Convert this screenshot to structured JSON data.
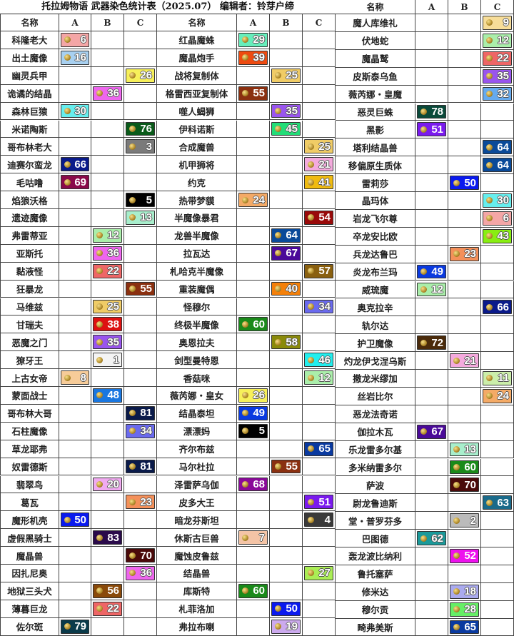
{
  "title": "托拉姆物语  武器染色统计表（2025.07）  编辑者：铃芽户缔",
  "headers": {
    "name": "名称",
    "a": "A",
    "b": "B",
    "c": "C"
  },
  "icon": "dye-orb-icon",
  "groups": [
    [
      [
        "科隆老大",
        "A",
        6,
        "#f4a6a6"
      ],
      [
        "出土魔像",
        "A",
        16,
        "#a8d0f0"
      ],
      [
        "幽灵兵甲",
        "C",
        26,
        "#f7f05a"
      ],
      [
        "诡谲的结晶",
        "B",
        36,
        "#ee66ee"
      ],
      [
        "森林巨猿",
        "A",
        30,
        "#66eeee"
      ],
      [
        "米诺陶斯",
        "C",
        76,
        "#0a5a1a"
      ],
      [
        "哥布林老大",
        "C",
        3,
        "#7a7a7a"
      ],
      [
        "迪赛尔蛮龙",
        "A",
        66,
        "#0a1a8a"
      ],
      [
        "毛咕噜",
        "A",
        69,
        "#8a0a4a"
      ],
      [
        "焰狼沃格",
        "C",
        5,
        "#000000"
      ],
      [
        "遗迹魔像",
        "C",
        13,
        "#a8eecc"
      ],
      [
        "弗雷蒂亚",
        "B",
        12,
        "#aaeeaa"
      ],
      [
        "亚斯托",
        "B",
        36,
        "#ee66ee"
      ],
      [
        "黏液怪",
        "B",
        22,
        "#ee6666"
      ],
      [
        "狂暴龙",
        "C",
        55,
        "#8a3010"
      ],
      [
        "马维兹",
        "B",
        25,
        "#f0cc66"
      ],
      [
        "甘瑞夫",
        "B",
        38,
        "#dd1111"
      ],
      [
        "恶魔之门",
        "B",
        35,
        "#9955ee"
      ],
      [
        "獠牙王",
        "B",
        1,
        "#f4f4f4"
      ],
      [
        "上古女帝",
        "A",
        8,
        "#f7cc99"
      ],
      [
        "蒙面战士",
        "B",
        48,
        "#1a77e0"
      ],
      [
        "哥布林大哥",
        "C",
        81,
        "#0a1a4a"
      ],
      [
        "石柱魔像",
        "C",
        34,
        "#6a6aee"
      ],
      [
        "草龙耶弗",
        "",
        null,
        ""
      ],
      [
        "奴雷德斯",
        "C",
        81,
        "#0a1a4a"
      ],
      [
        "翡翠鸟",
        "B",
        20,
        "#f0aaf0"
      ],
      [
        "葛瓦",
        "C",
        23,
        "#f4905a"
      ],
      [
        "魔形机壳",
        "A",
        50,
        "#0a1aee"
      ],
      [
        "虚假黑骑士",
        "B",
        83,
        "#2a0a4a"
      ],
      [
        "魔晶兽",
        "C",
        70,
        "#4a0a0a"
      ],
      [
        "因扎尼奥",
        "C",
        36,
        "#ee66ee"
      ],
      [
        "地狱三头犬",
        "B",
        56,
        "#8a4a0a"
      ],
      [
        "薄暮巨龙",
        "B",
        22,
        "#ee6666"
      ],
      [
        "佐尔斑",
        "A",
        79,
        "#0a3a4a"
      ]
    ],
    [
      [
        "红晶魔蛛",
        "A",
        29,
        "#66eebb"
      ],
      [
        "魔晶炮手",
        "A",
        39,
        "#ee4a10"
      ],
      [
        "战将复制体",
        "B",
        25,
        "#f0cc66"
      ],
      [
        "格雷西亚复制体",
        "A",
        55,
        "#8a3010"
      ],
      [
        "噬人蝎狮",
        "B",
        35,
        "#9955ee"
      ],
      [
        "伊科诺斯",
        "B",
        45,
        "#22dd77"
      ],
      [
        "合成魔兽",
        "C",
        25,
        "#f0cc66"
      ],
      [
        "机甲狮将",
        "C",
        21,
        "#f4aadd"
      ],
      [
        "约克",
        "C",
        41,
        "#f0bb10"
      ],
      [
        "热带梦貘",
        "A",
        24,
        "#f4aa66"
      ],
      [
        "半魔像暴君",
        "C",
        54,
        "#990a0a"
      ],
      [
        "龙兽半魔像",
        "B",
        64,
        "#0a4a99"
      ],
      [
        "拉瓦达",
        "B",
        67,
        "#4a0a99"
      ],
      [
        "札哈克半魔像",
        "C",
        57,
        "#8a6010"
      ],
      [
        "重装魔偶",
        "B",
        40,
        "#f4800a"
      ],
      [
        "怪穆尔",
        "C",
        34,
        "#6a6aee"
      ],
      [
        "终极半魔像",
        "A",
        60,
        "#1a8a1a"
      ],
      [
        "奥恩拉夫",
        "B",
        58,
        "#8a8a0a"
      ],
      [
        "剑型曼特恩",
        "C",
        46,
        "#22eeee"
      ],
      [
        "香菇咪",
        "C",
        12,
        "#aaeeaa"
      ],
      [
        "薇芮娜・皇女",
        "A",
        26,
        "#f7f05a"
      ],
      [
        "结晶泰坦",
        "A",
        49,
        "#0a3ae0"
      ],
      [
        "漂漂妈",
        "A",
        5,
        "#000000"
      ],
      [
        "齐尔布兹",
        "C",
        65,
        "#0a3aa0"
      ],
      [
        "马尔杜拉",
        "B",
        55,
        "#8a3010"
      ],
      [
        "泽雷萨乌伽",
        "A",
        68,
        "#8a0a99"
      ],
      [
        "皮多大王",
        "C",
        51,
        "#7a1aee"
      ],
      [
        "暗龙芬斯坦",
        "C",
        4,
        "#3a3a3a"
      ],
      [
        "休斯古巨兽",
        "A",
        7,
        "#f4c4a6"
      ],
      [
        "魔蚀皮鲁兹",
        "",
        null,
        ""
      ],
      [
        "结晶兽",
        "C",
        27,
        "#aaee55"
      ],
      [
        "库斯特",
        "A",
        60,
        "#1a8a1a"
      ],
      [
        "札菲洛加",
        "B",
        50,
        "#0a1aee"
      ],
      [
        "弗拉布喇",
        "B",
        19,
        "#ccaaee"
      ]
    ],
    [
      [
        "魔人库维礼",
        "C",
        9,
        "#f7dd99"
      ],
      [
        "伏地蛇",
        "C",
        12,
        "#aaeeaa"
      ],
      [
        "魔晶鹫",
        "C",
        22,
        "#ee6666"
      ],
      [
        "皮斯泰乌鱼",
        "C",
        35,
        "#9955ee"
      ],
      [
        "薇芮娜・皇魔",
        "C",
        32,
        "#66aaee"
      ],
      [
        "恶灵巨蛛",
        "A",
        78,
        "#0a4a3a"
      ],
      [
        "黑影",
        "A",
        51,
        "#7a1aee"
      ],
      [
        "塔利结晶兽",
        "C",
        64,
        "#0a4a99"
      ],
      [
        "移偏原生质体",
        "C",
        64,
        "#0a4a99"
      ],
      [
        "雷莉莎",
        "B",
        50,
        "#0a1aee"
      ],
      [
        "晶玛体",
        "C",
        30,
        "#66eeee"
      ],
      [
        "岩龙飞尔尊",
        "C",
        6,
        "#f4a6a6"
      ],
      [
        "卒龙安比欧",
        "C",
        43,
        "#88ee11"
      ],
      [
        "兵龙达鲁巴",
        "B",
        23,
        "#f4905a"
      ],
      [
        "炎龙布兰玛",
        "A",
        49,
        "#0a3ae0"
      ],
      [
        "威琉魔",
        "A",
        12,
        "#aaeeaa"
      ],
      [
        "奥克拉辛",
        "C",
        66,
        "#0a1a8a"
      ],
      [
        "轨尔达",
        "",
        null,
        ""
      ],
      [
        "护卫魔像",
        "A",
        72,
        "#4a2a0a"
      ],
      [
        "灼龙伊戈涅乌斯",
        "B",
        21,
        "#f4aadd"
      ],
      [
        "撒龙米缪加",
        "C",
        11,
        "#cceeaa"
      ],
      [
        "丝岩比尔",
        "C",
        24,
        "#f4aa66"
      ],
      [
        "恶龙法奇诺",
        "",
        null,
        ""
      ],
      [
        "伽拉木瓦",
        "A",
        67,
        "#4a0a99"
      ],
      [
        "乐龙雷多尔基",
        "B",
        13,
        "#a8eecc"
      ],
      [
        "多米纳雷多尔",
        "B",
        60,
        "#1a8a1a"
      ],
      [
        "萨波",
        "B",
        70,
        "#4a0a0a"
      ],
      [
        "尉龙鲁迪斯",
        "C",
        63,
        "#1a6a8a"
      ],
      [
        "堂・普罗芬多",
        "B",
        2,
        "#bbbbbb"
      ],
      [
        "巴图德",
        "A",
        62,
        "#1a9a9a"
      ],
      [
        "轰龙波比纳利",
        "B",
        52,
        "#ee11ee"
      ],
      [
        "鲁托塞萨",
        "",
        null,
        ""
      ],
      [
        "修米达",
        "B",
        18,
        "#aaaaee"
      ],
      [
        "穆尔贡",
        "B",
        28,
        "#66ee66"
      ],
      [
        "畸弗美斯",
        "B",
        65,
        "#0a3aa0"
      ]
    ]
  ]
}
